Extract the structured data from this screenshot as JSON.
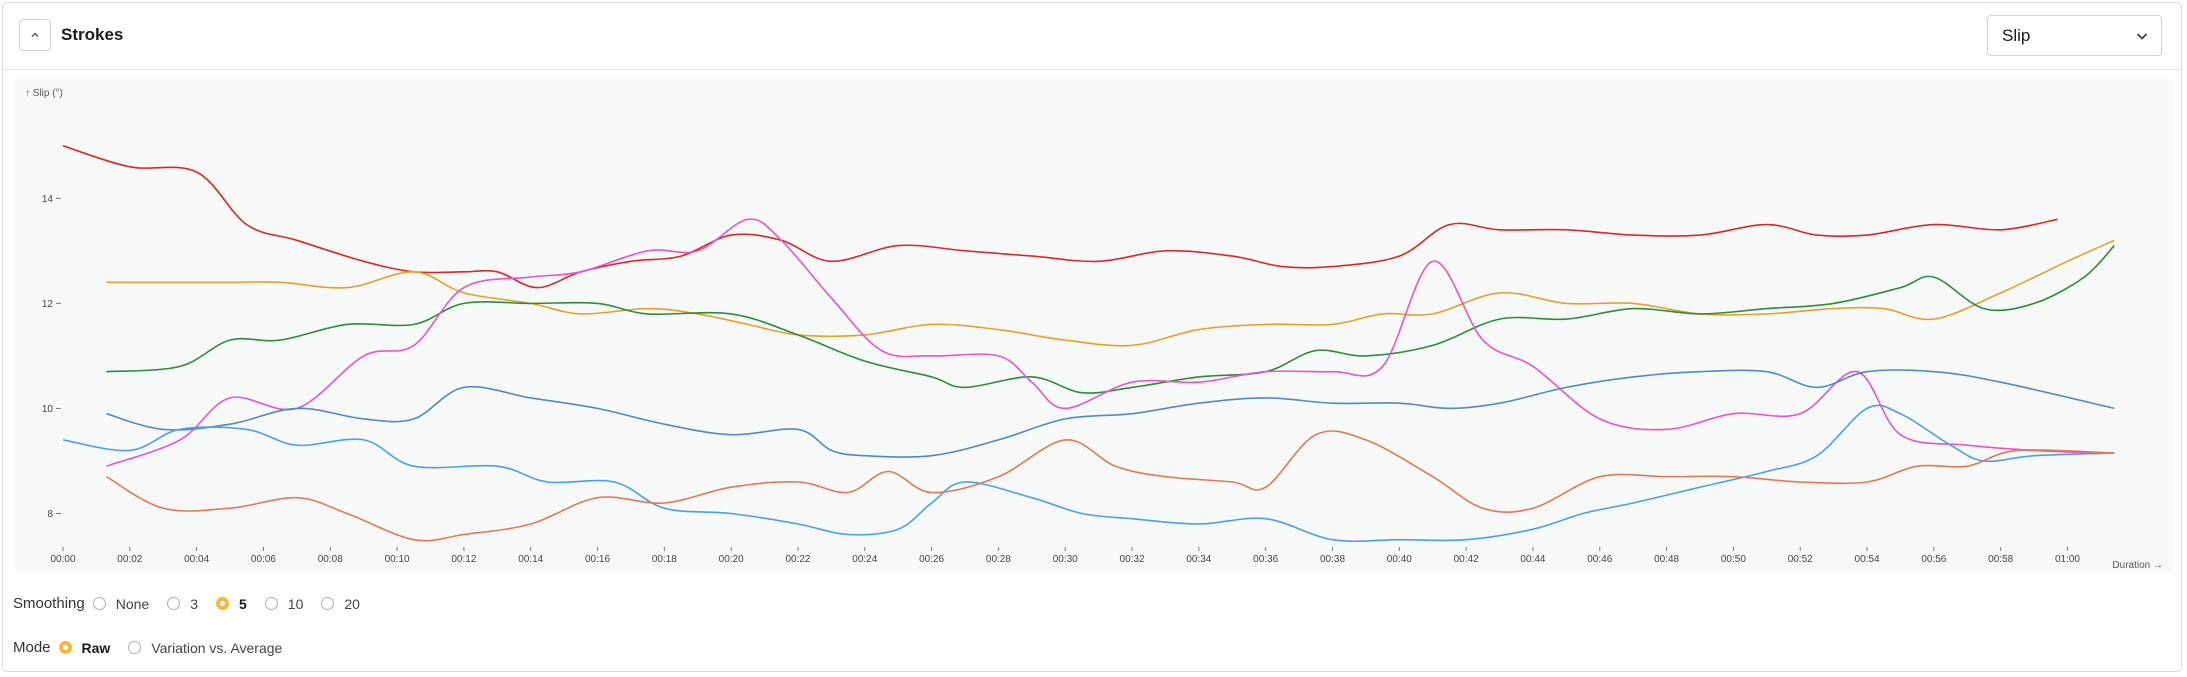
{
  "panel": {
    "title": "Strokes"
  },
  "metric_select": {
    "value": "Slip"
  },
  "chart_data": {
    "type": "line",
    "ylabel": "↑ Slip (°)",
    "xlabel": "Duration →",
    "xlim": [
      0,
      62.5
    ],
    "ylim": [
      7.4,
      15.7
    ],
    "yticks": [
      8,
      10,
      12,
      14
    ],
    "xticks": [
      "00:00",
      "00:02",
      "00:04",
      "00:06",
      "00:08",
      "00:10",
      "00:12",
      "00:14",
      "00:16",
      "00:18",
      "00:20",
      "00:22",
      "00:24",
      "00:26",
      "00:28",
      "00:30",
      "00:32",
      "00:34",
      "00:36",
      "00:38",
      "00:40",
      "00:42",
      "00:44",
      "00:46",
      "00:48",
      "00:50",
      "00:52",
      "00:54",
      "00:56",
      "00:58",
      "01:00"
    ],
    "grid": false,
    "series": [
      {
        "color": "#d62a2a",
        "points": [
          [
            0,
            15.0
          ],
          [
            2,
            14.6
          ],
          [
            4,
            14.5
          ],
          [
            5.5,
            13.5
          ],
          [
            7,
            13.2
          ],
          [
            9,
            12.8
          ],
          [
            10.5,
            12.6
          ],
          [
            12,
            12.6
          ],
          [
            13,
            12.6
          ],
          [
            14.2,
            12.3
          ],
          [
            15.5,
            12.6
          ],
          [
            17,
            12.8
          ],
          [
            18.5,
            12.9
          ],
          [
            20,
            13.3
          ],
          [
            21.5,
            13.2
          ],
          [
            23,
            12.8
          ],
          [
            25,
            13.1
          ],
          [
            27,
            13.0
          ],
          [
            29,
            12.9
          ],
          [
            31,
            12.8
          ],
          [
            33,
            13.0
          ],
          [
            35,
            12.9
          ],
          [
            36.5,
            12.7
          ],
          [
            38,
            12.7
          ],
          [
            40,
            12.9
          ],
          [
            41.5,
            13.5
          ],
          [
            43,
            13.4
          ],
          [
            45,
            13.4
          ],
          [
            47,
            13.3
          ],
          [
            49,
            13.3
          ],
          [
            51,
            13.5
          ],
          [
            52.5,
            13.3
          ],
          [
            54,
            13.3
          ],
          [
            56,
            13.5
          ],
          [
            58,
            13.4
          ],
          [
            59.7,
            13.6
          ]
        ]
      },
      {
        "color": "#e3a12a",
        "points": [
          [
            1.3,
            12.4
          ],
          [
            4,
            12.4
          ],
          [
            5,
            12.4
          ],
          [
            6.5,
            12.4
          ],
          [
            8.5,
            12.3
          ],
          [
            10.5,
            12.6
          ],
          [
            12,
            12.2
          ],
          [
            14,
            12.0
          ],
          [
            15.5,
            11.8
          ],
          [
            17.5,
            11.9
          ],
          [
            19,
            11.8
          ],
          [
            20.5,
            11.6
          ],
          [
            22,
            11.4
          ],
          [
            24,
            11.4
          ],
          [
            26,
            11.6
          ],
          [
            28,
            11.5
          ],
          [
            30,
            11.3
          ],
          [
            32,
            11.2
          ],
          [
            34,
            11.5
          ],
          [
            36,
            11.6
          ],
          [
            38,
            11.6
          ],
          [
            39.5,
            11.8
          ],
          [
            41,
            11.8
          ],
          [
            43,
            12.2
          ],
          [
            45,
            12.0
          ],
          [
            47,
            12.0
          ],
          [
            49,
            11.8
          ],
          [
            51,
            11.8
          ],
          [
            53,
            11.9
          ],
          [
            54.5,
            11.9
          ],
          [
            56,
            11.7
          ],
          [
            58,
            12.2
          ],
          [
            60,
            12.8
          ],
          [
            61.4,
            13.2
          ]
        ]
      },
      {
        "color": "#2e8b3a",
        "points": [
          [
            1.3,
            10.7
          ],
          [
            3.5,
            10.8
          ],
          [
            5,
            11.3
          ],
          [
            6.5,
            11.3
          ],
          [
            8.5,
            11.6
          ],
          [
            10.5,
            11.6
          ],
          [
            12,
            12.0
          ],
          [
            14,
            12.0
          ],
          [
            16,
            12.0
          ],
          [
            17.5,
            11.8
          ],
          [
            20,
            11.8
          ],
          [
            22,
            11.4
          ],
          [
            24,
            10.9
          ],
          [
            26,
            10.6
          ],
          [
            27,
            10.4
          ],
          [
            29,
            10.6
          ],
          [
            30.5,
            10.3
          ],
          [
            32,
            10.4
          ],
          [
            34,
            10.6
          ],
          [
            36,
            10.7
          ],
          [
            37.5,
            11.1
          ],
          [
            39,
            11.0
          ],
          [
            41,
            11.2
          ],
          [
            43,
            11.7
          ],
          [
            45,
            11.7
          ],
          [
            47,
            11.9
          ],
          [
            49,
            11.8
          ],
          [
            51,
            11.9
          ],
          [
            53,
            12.0
          ],
          [
            55,
            12.3
          ],
          [
            56,
            12.5
          ],
          [
            57.5,
            11.9
          ],
          [
            59,
            12.0
          ],
          [
            60.5,
            12.5
          ],
          [
            61.4,
            13.1
          ]
        ]
      },
      {
        "color": "#e855c8",
        "points": [
          [
            1.3,
            8.9
          ],
          [
            3.5,
            9.4
          ],
          [
            5,
            10.2
          ],
          [
            7,
            10.0
          ],
          [
            9,
            11.0
          ],
          [
            10.5,
            11.2
          ],
          [
            12,
            12.3
          ],
          [
            14,
            12.5
          ],
          [
            15.5,
            12.6
          ],
          [
            17.5,
            13.0
          ],
          [
            19,
            13.0
          ],
          [
            20.5,
            13.6
          ],
          [
            21.5,
            13.2
          ],
          [
            23,
            12.1
          ],
          [
            24.5,
            11.1
          ],
          [
            26,
            11.0
          ],
          [
            28,
            11.0
          ],
          [
            29,
            10.5
          ],
          [
            30,
            10.0
          ],
          [
            32,
            10.5
          ],
          [
            34,
            10.5
          ],
          [
            36,
            10.7
          ],
          [
            38,
            10.7
          ],
          [
            39.5,
            10.8
          ],
          [
            41,
            12.8
          ],
          [
            42.5,
            11.3
          ],
          [
            44,
            10.8
          ],
          [
            46,
            9.8
          ],
          [
            48,
            9.6
          ],
          [
            50,
            9.9
          ],
          [
            52,
            9.9
          ],
          [
            53.7,
            10.7
          ],
          [
            55,
            9.5
          ],
          [
            57,
            9.3
          ],
          [
            59,
            9.2
          ],
          [
            61,
            9.15
          ]
        ]
      },
      {
        "color": "#4f8ac6",
        "points": [
          [
            1.3,
            9.9
          ],
          [
            3,
            9.6
          ],
          [
            5,
            9.7
          ],
          [
            7,
            10.0
          ],
          [
            9,
            9.8
          ],
          [
            10.5,
            9.8
          ],
          [
            12,
            10.4
          ],
          [
            14,
            10.2
          ],
          [
            16,
            10.0
          ],
          [
            18,
            9.7
          ],
          [
            20,
            9.5
          ],
          [
            22,
            9.6
          ],
          [
            23,
            9.2
          ],
          [
            24,
            9.1
          ],
          [
            26,
            9.1
          ],
          [
            28,
            9.4
          ],
          [
            30,
            9.8
          ],
          [
            32,
            9.9
          ],
          [
            34,
            10.1
          ],
          [
            36,
            10.2
          ],
          [
            38,
            10.1
          ],
          [
            40,
            10.1
          ],
          [
            41.5,
            10.0
          ],
          [
            43,
            10.1
          ],
          [
            45,
            10.4
          ],
          [
            47,
            10.6
          ],
          [
            49,
            10.7
          ],
          [
            51,
            10.7
          ],
          [
            52.5,
            10.4
          ],
          [
            54,
            10.7
          ],
          [
            56,
            10.7
          ],
          [
            58,
            10.5
          ],
          [
            61.4,
            10.0
          ]
        ]
      },
      {
        "color": "#4aa0e6",
        "points": [
          [
            0,
            9.4
          ],
          [
            2,
            9.2
          ],
          [
            3.5,
            9.6
          ],
          [
            5.5,
            9.6
          ],
          [
            7,
            9.3
          ],
          [
            9,
            9.4
          ],
          [
            10.5,
            8.9
          ],
          [
            13,
            8.9
          ],
          [
            14.5,
            8.6
          ],
          [
            16.5,
            8.6
          ],
          [
            18,
            8.1
          ],
          [
            20,
            8.0
          ],
          [
            22,
            7.8
          ],
          [
            23.5,
            7.6
          ],
          [
            25,
            7.7
          ],
          [
            26,
            8.2
          ],
          [
            27,
            8.6
          ],
          [
            29,
            8.3
          ],
          [
            30.5,
            8.0
          ],
          [
            32,
            7.9
          ],
          [
            34,
            7.8
          ],
          [
            36,
            7.9
          ],
          [
            38,
            7.5
          ],
          [
            40,
            7.5
          ],
          [
            42,
            7.5
          ],
          [
            44,
            7.7
          ],
          [
            45.5,
            8.0
          ],
          [
            47,
            8.2
          ],
          [
            49,
            8.5
          ],
          [
            51,
            8.8
          ],
          [
            52.5,
            9.1
          ],
          [
            54,
            10.0
          ],
          [
            55,
            9.9
          ],
          [
            56.5,
            9.3
          ],
          [
            57.5,
            9.0
          ],
          [
            59,
            9.1
          ],
          [
            61.4,
            9.15
          ]
        ]
      },
      {
        "color": "#e07a55",
        "points": [
          [
            1.3,
            8.7
          ],
          [
            3,
            8.1
          ],
          [
            5,
            8.1
          ],
          [
            7,
            8.3
          ],
          [
            8.5,
            8.0
          ],
          [
            10.5,
            7.5
          ],
          [
            12,
            7.6
          ],
          [
            14,
            7.8
          ],
          [
            16,
            8.3
          ],
          [
            18,
            8.2
          ],
          [
            20,
            8.5
          ],
          [
            22,
            8.6
          ],
          [
            23.5,
            8.4
          ],
          [
            24.7,
            8.8
          ],
          [
            26,
            8.4
          ],
          [
            28,
            8.7
          ],
          [
            30,
            9.4
          ],
          [
            31.5,
            8.9
          ],
          [
            33,
            8.7
          ],
          [
            35,
            8.6
          ],
          [
            36,
            8.5
          ],
          [
            37.5,
            9.5
          ],
          [
            39,
            9.4
          ],
          [
            41,
            8.7
          ],
          [
            42.5,
            8.1
          ],
          [
            44,
            8.1
          ],
          [
            46,
            8.7
          ],
          [
            48,
            8.7
          ],
          [
            50,
            8.7
          ],
          [
            52,
            8.6
          ],
          [
            54,
            8.6
          ],
          [
            55.5,
            8.9
          ],
          [
            57,
            8.9
          ],
          [
            58.5,
            9.2
          ],
          [
            61.4,
            9.15
          ]
        ]
      }
    ]
  },
  "smoothing": {
    "label": "Smoothing",
    "options": [
      {
        "label": "None",
        "selected": false
      },
      {
        "label": "3",
        "selected": false
      },
      {
        "label": "5",
        "selected": true
      },
      {
        "label": "10",
        "selected": false
      },
      {
        "label": "20",
        "selected": false
      }
    ]
  },
  "mode": {
    "label": "Mode",
    "options": [
      {
        "label": "Raw",
        "selected": true
      },
      {
        "label": "Variation vs. Average",
        "selected": false
      }
    ]
  }
}
